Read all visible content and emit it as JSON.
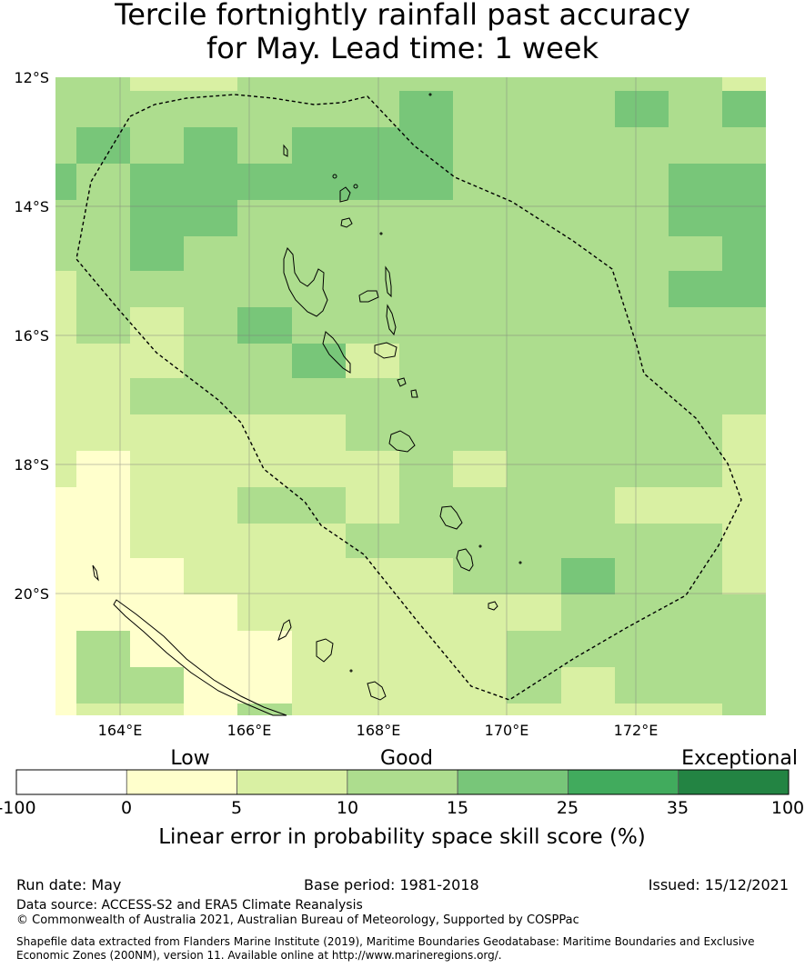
{
  "title": {
    "line1": "Tercile fortnightly rainfall past accuracy",
    "line2": "for May. Lead time: 1 week"
  },
  "map": {
    "lat_labels": [
      "12°S",
      "14°S",
      "16°S",
      "18°S",
      "20°S"
    ],
    "lon_labels": [
      "164°E",
      "166°E",
      "168°E",
      "170°E",
      "172°E"
    ],
    "lon_range": [
      163.0,
      174.0
    ],
    "lat_range": [
      -12.0,
      -21.9
    ],
    "grid": true,
    "eez_boundary": "dashed"
  },
  "colorbar": {
    "category_labels": [
      "Low",
      "Good",
      "Exceptional"
    ],
    "tick_labels": [
      "-100",
      "0",
      "5",
      "10",
      "15",
      "25",
      "35",
      "100"
    ],
    "colors": [
      "#ffffff",
      "#ffffcc",
      "#d9f0a3",
      "#addd8e",
      "#78c679",
      "#41ab5d",
      "#238443"
    ],
    "title": "Linear error in probability space skill score (%)"
  },
  "footer": {
    "run_date": "Run date: May",
    "base_period": "Base period: 1981-2018",
    "issued": "Issued: 15/12/2021",
    "data_source": "Data source: ACCESS-S2 and ERA5 Climate Reanalysis",
    "copyright": "© Commonwealth of Australia 2021, Australian Bureau of Meteorology, Supported by COSPPac",
    "shapefile_line1": "Shapefile data extracted from Flanders Marine Institute (2019), Maritime Boundaries Geodatabase: Maritime Boundaries and Exclusive",
    "shapefile_line2": "Economic Zones (200NM), version 11. Available online at http://www.marineregions.org/."
  }
}
